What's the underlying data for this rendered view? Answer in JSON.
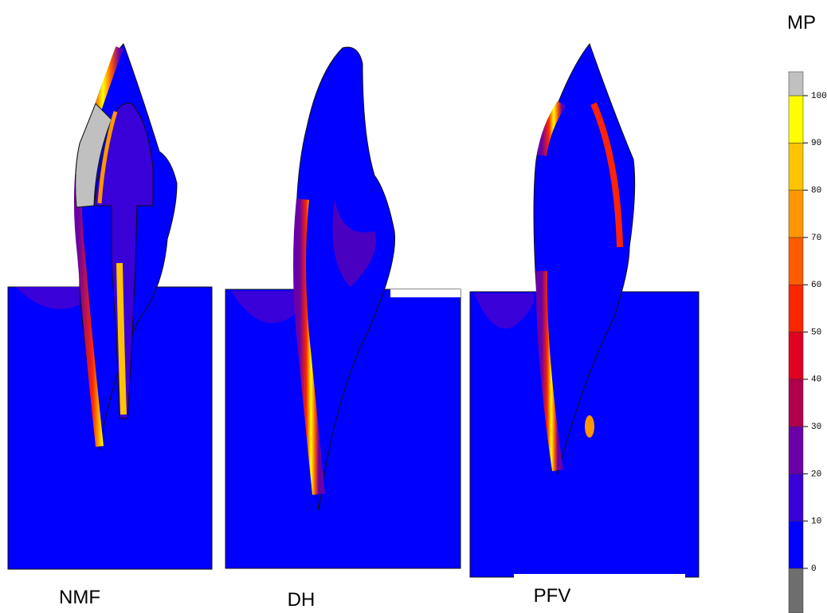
{
  "panels": [
    {
      "label": "NMF"
    },
    {
      "label": "DH"
    },
    {
      "label": "PFV"
    }
  ],
  "colorbar": {
    "title": "MP",
    "ticks": [
      0,
      10,
      20,
      30,
      40,
      50,
      60,
      70,
      80,
      90,
      100
    ],
    "colors": [
      "#6e6e6e",
      "#0000ff",
      "#3a00d8",
      "#6a00a6",
      "#b0004e",
      "#e00020",
      "#ff2400",
      "#ff5c00",
      "#ff9600",
      "#ffc400",
      "#ffff00",
      "#c0c0c0"
    ]
  }
}
